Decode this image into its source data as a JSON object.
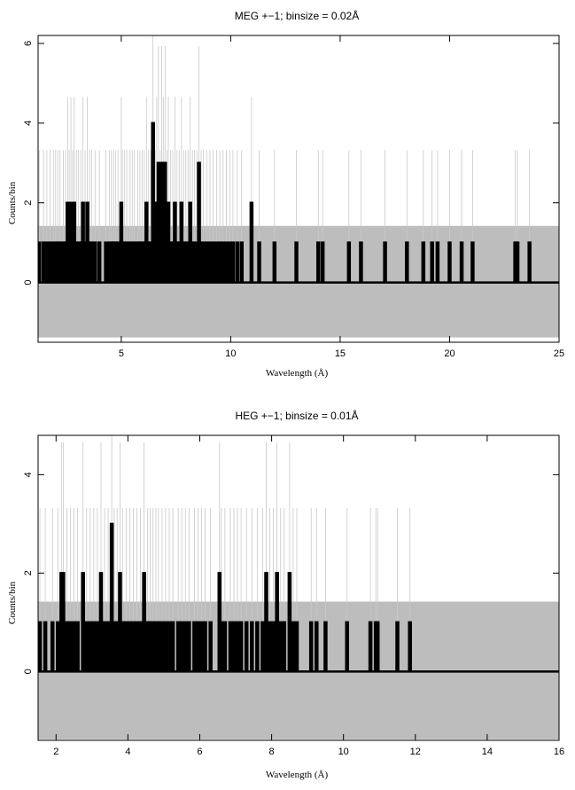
{
  "chart_data": [
    {
      "type": "step",
      "title": "MEG +−1; binsize = 0.02Å",
      "xlabel": "Wavelength (Å)",
      "ylabel": "Counts/bin",
      "xlim": [
        1.2,
        25
      ],
      "ylim": [
        -1.5,
        6.2
      ],
      "xticks": [
        5,
        10,
        15,
        20,
        25
      ],
      "yticks": [
        0,
        2,
        4,
        6
      ],
      "error_band": {
        "lower": -1.38,
        "upper": 1.42,
        "color": "#bdbdbd"
      },
      "series_color": "#000000",
      "bins": [
        [
          1.25,
          1
        ],
        [
          1.45,
          1
        ],
        [
          1.6,
          1
        ],
        [
          1.75,
          1
        ],
        [
          1.9,
          1
        ],
        [
          2.0,
          1
        ],
        [
          2.1,
          1
        ],
        [
          2.2,
          1
        ],
        [
          2.35,
          1
        ],
        [
          2.45,
          1
        ],
        [
          2.55,
          2
        ],
        [
          2.62,
          1
        ],
        [
          2.7,
          2
        ],
        [
          2.78,
          1
        ],
        [
          2.85,
          2
        ],
        [
          2.95,
          1
        ],
        [
          3.05,
          1
        ],
        [
          3.15,
          1
        ],
        [
          3.25,
          2
        ],
        [
          3.35,
          1
        ],
        [
          3.45,
          2
        ],
        [
          3.55,
          1
        ],
        [
          3.65,
          1
        ],
        [
          3.8,
          1
        ],
        [
          4.0,
          1
        ],
        [
          4.3,
          1
        ],
        [
          4.45,
          1
        ],
        [
          4.55,
          1
        ],
        [
          4.65,
          1
        ],
        [
          4.75,
          1
        ],
        [
          4.85,
          1
        ],
        [
          5.0,
          2
        ],
        [
          5.05,
          1
        ],
        [
          5.15,
          1
        ],
        [
          5.25,
          1
        ],
        [
          5.4,
          1
        ],
        [
          5.5,
          1
        ],
        [
          5.6,
          1
        ],
        [
          5.75,
          1
        ],
        [
          5.85,
          1
        ],
        [
          5.95,
          1
        ],
        [
          6.05,
          1
        ],
        [
          6.15,
          2
        ],
        [
          6.25,
          1
        ],
        [
          6.35,
          1
        ],
        [
          6.45,
          4
        ],
        [
          6.55,
          1
        ],
        [
          6.62,
          2
        ],
        [
          6.7,
          3
        ],
        [
          6.78,
          1
        ],
        [
          6.85,
          3
        ],
        [
          6.92,
          2
        ],
        [
          7.0,
          3
        ],
        [
          7.08,
          1
        ],
        [
          7.15,
          2
        ],
        [
          7.25,
          1
        ],
        [
          7.35,
          1
        ],
        [
          7.45,
          2
        ],
        [
          7.55,
          1
        ],
        [
          7.65,
          1
        ],
        [
          7.75,
          2
        ],
        [
          7.85,
          1
        ],
        [
          7.95,
          1
        ],
        [
          8.05,
          1
        ],
        [
          8.15,
          2
        ],
        [
          8.25,
          1
        ],
        [
          8.35,
          1
        ],
        [
          8.45,
          1
        ],
        [
          8.55,
          3
        ],
        [
          8.65,
          1
        ],
        [
          8.75,
          1
        ],
        [
          8.9,
          1
        ],
        [
          9.05,
          1
        ],
        [
          9.2,
          1
        ],
        [
          9.35,
          1
        ],
        [
          9.5,
          1
        ],
        [
          9.65,
          1
        ],
        [
          9.8,
          1
        ],
        [
          9.95,
          1
        ],
        [
          10.1,
          1
        ],
        [
          10.3,
          1
        ],
        [
          10.5,
          1
        ],
        [
          10.95,
          2
        ],
        [
          11.3,
          1
        ],
        [
          12.0,
          1
        ],
        [
          13.0,
          1
        ],
        [
          14.0,
          1
        ],
        [
          14.2,
          1
        ],
        [
          15.4,
          1
        ],
        [
          15.95,
          1
        ],
        [
          17.05,
          1
        ],
        [
          18.05,
          1
        ],
        [
          18.8,
          1
        ],
        [
          19.2,
          1
        ],
        [
          19.45,
          1
        ],
        [
          20.0,
          1
        ],
        [
          20.55,
          1
        ],
        [
          21.05,
          1
        ],
        [
          23.0,
          1
        ],
        [
          23.1,
          1
        ],
        [
          23.65,
          1
        ]
      ]
    },
    {
      "type": "step",
      "title": "HEG +−1; binsize = 0.01Å",
      "xlabel": "Wavelength (Å)",
      "ylabel": "Counts/bin",
      "xlim": [
        1.5,
        16
      ],
      "ylim": [
        -1.4,
        4.8
      ],
      "xticks": [
        2,
        4,
        6,
        8,
        10,
        12,
        14,
        16
      ],
      "yticks": [
        0,
        2,
        4
      ],
      "error_band": {
        "lower": -1.38,
        "upper": 1.42,
        "color": "#bdbdbd"
      },
      "series_color": "#000000",
      "bins": [
        [
          1.55,
          1
        ],
        [
          1.7,
          1
        ],
        [
          1.9,
          1
        ],
        [
          2.05,
          1
        ],
        [
          2.15,
          2
        ],
        [
          2.2,
          2
        ],
        [
          2.3,
          1
        ],
        [
          2.4,
          1
        ],
        [
          2.5,
          1
        ],
        [
          2.6,
          1
        ],
        [
          2.75,
          2
        ],
        [
          2.85,
          1
        ],
        [
          2.95,
          1
        ],
        [
          3.05,
          1
        ],
        [
          3.15,
          1
        ],
        [
          3.25,
          2
        ],
        [
          3.35,
          1
        ],
        [
          3.45,
          1
        ],
        [
          3.55,
          3
        ],
        [
          3.62,
          1
        ],
        [
          3.7,
          1
        ],
        [
          3.78,
          2
        ],
        [
          3.85,
          1
        ],
        [
          3.95,
          1
        ],
        [
          4.05,
          1
        ],
        [
          4.15,
          1
        ],
        [
          4.25,
          1
        ],
        [
          4.35,
          1
        ],
        [
          4.45,
          2
        ],
        [
          4.55,
          1
        ],
        [
          4.62,
          1
        ],
        [
          4.7,
          1
        ],
        [
          4.78,
          1
        ],
        [
          4.85,
          1
        ],
        [
          4.95,
          1
        ],
        [
          5.05,
          1
        ],
        [
          5.15,
          1
        ],
        [
          5.25,
          1
        ],
        [
          5.4,
          1
        ],
        [
          5.5,
          1
        ],
        [
          5.6,
          1
        ],
        [
          5.7,
          1
        ],
        [
          5.85,
          1
        ],
        [
          5.95,
          1
        ],
        [
          6.05,
          1
        ],
        [
          6.15,
          1
        ],
        [
          6.3,
          1
        ],
        [
          6.55,
          2
        ],
        [
          6.6,
          1
        ],
        [
          6.7,
          1
        ],
        [
          6.85,
          1
        ],
        [
          6.95,
          1
        ],
        [
          7.05,
          1
        ],
        [
          7.15,
          1
        ],
        [
          7.3,
          1
        ],
        [
          7.45,
          1
        ],
        [
          7.6,
          1
        ],
        [
          7.75,
          1
        ],
        [
          7.85,
          2
        ],
        [
          7.95,
          1
        ],
        [
          8.05,
          1
        ],
        [
          8.15,
          2
        ],
        [
          8.25,
          1
        ],
        [
          8.35,
          1
        ],
        [
          8.5,
          2
        ],
        [
          8.6,
          1
        ],
        [
          8.7,
          1
        ],
        [
          9.1,
          1
        ],
        [
          9.25,
          1
        ],
        [
          9.5,
          1
        ],
        [
          10.1,
          1
        ],
        [
          10.75,
          1
        ],
        [
          10.9,
          1
        ],
        [
          10.95,
          1
        ],
        [
          11.5,
          1
        ],
        [
          11.85,
          1
        ]
      ]
    }
  ]
}
